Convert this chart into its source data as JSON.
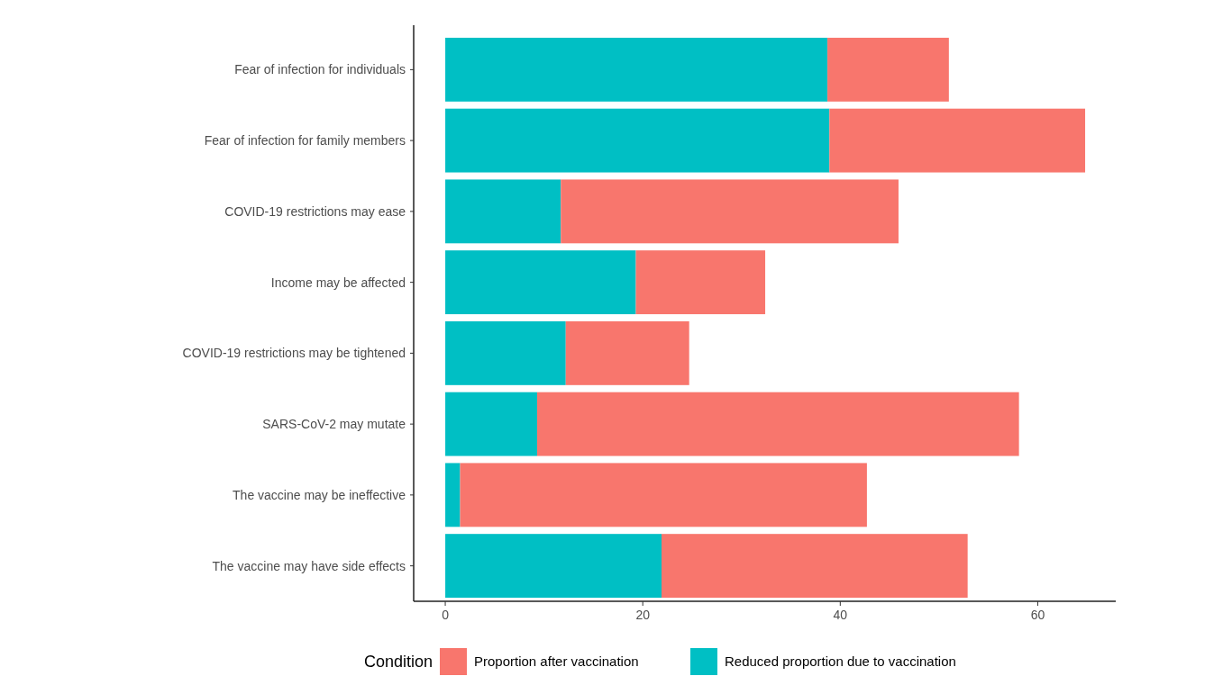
{
  "chart_data": {
    "type": "bar",
    "orientation": "horizontal",
    "stacked": true,
    "categories": [
      "Fear of infection for individuals",
      "Fear of infection for family members",
      "COVID-19 restrictions may ease",
      "Income may be affected",
      "COVID-19 restrictions may be tightened",
      "SARS-CoV-2 may mutate",
      "The vaccine may be ineffective",
      "The vaccine may have side effects"
    ],
    "series": [
      {
        "name": "Reduced proportion due to vaccination",
        "color": "#00bfc4",
        "values": [
          38.7,
          38.9,
          11.7,
          19.3,
          12.2,
          9.3,
          1.5,
          21.9
        ]
      },
      {
        "name": "Proportion after vaccination",
        "color": "#f8766d",
        "values": [
          12.3,
          25.9,
          34.2,
          13.1,
          12.5,
          48.8,
          41.2,
          31.0
        ]
      }
    ],
    "xlim": [
      -3.2,
      67.9
    ],
    "xticks": [
      0,
      20,
      40,
      60
    ],
    "legend": "bottom",
    "legend_title": "Condition",
    "grid": false
  }
}
